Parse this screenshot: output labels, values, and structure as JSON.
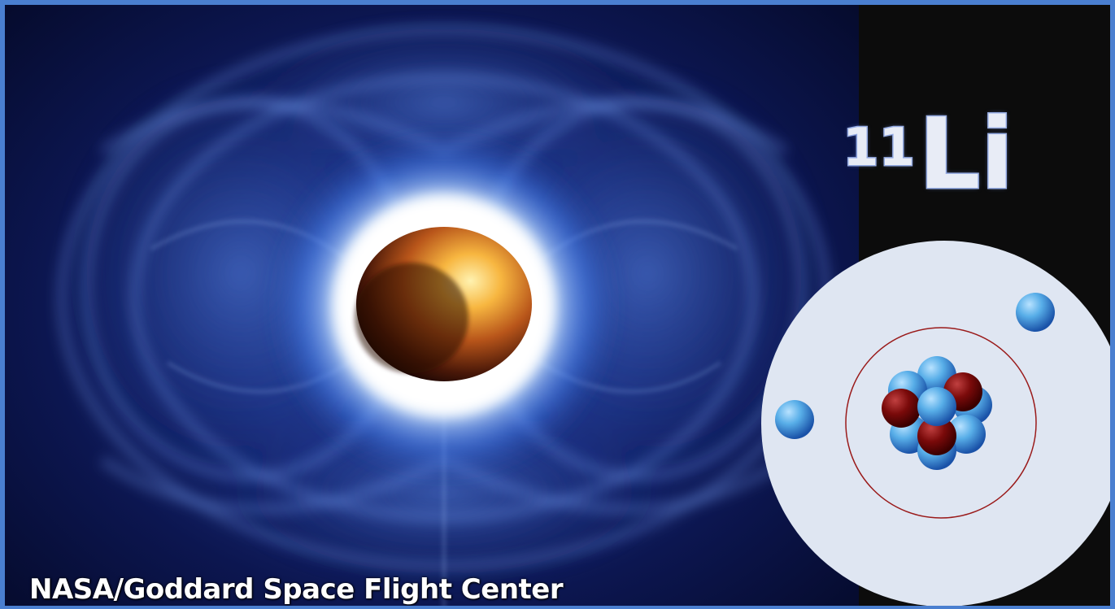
{
  "image": {
    "credit_text": "NASA/Goddard Space Flight Center",
    "isotope": {
      "mass_number": "11",
      "symbol": "Li"
    }
  },
  "colors": {
    "frame_border": "#4a7fd0",
    "nebula_blue": "#2a4ea8",
    "star_core": "#f0a030",
    "proton_red": "#7a0a0a",
    "neutron_blue": "#5aaee8",
    "electron_blue": "#4fa8e4",
    "orbit_line": "#9a1a1a",
    "atom_disc": "#dfe6f2",
    "label_color": "#e8ecf6"
  },
  "atom_model": {
    "protons": 3,
    "electrons_shown": 2
  }
}
